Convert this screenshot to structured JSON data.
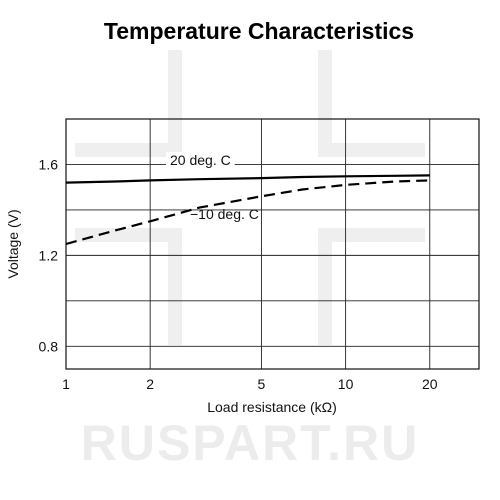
{
  "chart_data": {
    "type": "line",
    "title": "Temperature Characteristics",
    "xlabel": "Load resistance (kΩ)",
    "ylabel": "Voltage (V)",
    "x_scale": "log",
    "xlim": [
      1,
      30
    ],
    "ylim": [
      0.7,
      1.8
    ],
    "x_ticks": [
      1,
      2,
      5,
      10,
      20
    ],
    "x_tick_labels": [
      "1",
      "2",
      "5",
      "10",
      "20"
    ],
    "x_gridlines": [
      1,
      2,
      5,
      10,
      20
    ],
    "y_ticks": [
      0.8,
      1.2,
      1.6
    ],
    "y_tick_labels": [
      "0.8",
      "1.2",
      "1.6"
    ],
    "y_gridlines": [
      0.8,
      1.0,
      1.2,
      1.4,
      1.6
    ],
    "grid": true,
    "legend": "none",
    "series": [
      {
        "name": "20 deg. C",
        "style": "solid",
        "color": "#000000",
        "x": [
          1,
          1.5,
          2,
          3,
          5,
          7,
          10,
          15,
          20
        ],
        "y": [
          1.52,
          1.525,
          1.53,
          1.535,
          1.54,
          1.545,
          1.548,
          1.55,
          1.552
        ]
      },
      {
        "name": "−10 deg. C",
        "style": "dashed",
        "color": "#000000",
        "x": [
          1,
          1.5,
          2,
          3,
          5,
          7,
          10,
          15,
          20
        ],
        "y": [
          1.25,
          1.31,
          1.35,
          1.41,
          1.46,
          1.49,
          1.51,
          1.525,
          1.53
        ]
      }
    ]
  },
  "watermark": {
    "text": "RUSPART.RU"
  }
}
